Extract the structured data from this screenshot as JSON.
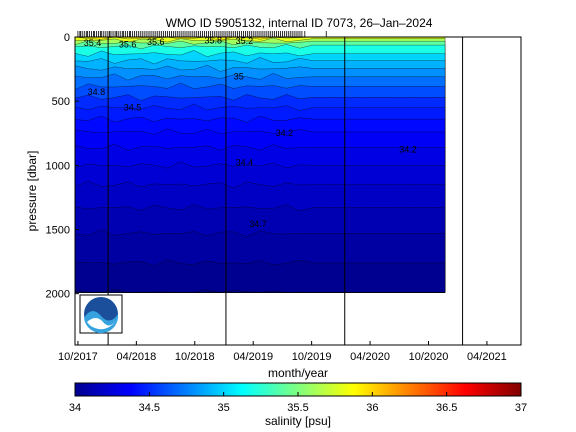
{
  "chart_data": {
    "type": "heatmap",
    "title": "WMO ID 5905132, internal ID 7073, 26–Jan–2024",
    "xlabel": "month/year",
    "ylabel": "pressure [dbar]",
    "colorbar_label": "salinity [psu]",
    "x_ticks": [
      "10/2017",
      "04/2018",
      "10/2018",
      "04/2019",
      "10/2019",
      "04/2020",
      "10/2020",
      "04/2021"
    ],
    "x_tick_months": [
      0,
      6,
      12,
      18,
      24,
      30,
      36,
      42
    ],
    "xlim_months": [
      -0.3,
      45.5
    ],
    "data_end_month": 37.7,
    "y_ticks": [
      0,
      500,
      1000,
      1500,
      2000
    ],
    "ylim": [
      0,
      2400
    ],
    "y_reversed": true,
    "max_pressure": 1990,
    "colorbar_ticks": [
      "34",
      "34.5",
      "35",
      "35.5",
      "36",
      "36.5",
      "37"
    ],
    "clim": [
      34,
      37
    ],
    "colormap": "jet",
    "vertical_lines_months": [
      3.1,
      15.2,
      27.4,
      39.5
    ],
    "contour_labels": [
      {
        "text": "35.4",
        "month": 0.6,
        "pressure": 40
      },
      {
        "text": "35.6",
        "month": 7.1,
        "pressure": 30
      },
      {
        "text": "35.6",
        "month": 4.2,
        "pressure": 50
      },
      {
        "text": "35.8",
        "month": 13.0,
        "pressure": 20
      },
      {
        "text": "35.2",
        "month": 16.2,
        "pressure": 25
      },
      {
        "text": "35",
        "month": 16.0,
        "pressure": 300
      },
      {
        "text": "34.8",
        "month": 1.0,
        "pressure": 420
      },
      {
        "text": "34.5",
        "month": 4.7,
        "pressure": 540
      },
      {
        "text": "34.2",
        "month": 20.3,
        "pressure": 740
      },
      {
        "text": "34.2",
        "month": 33.0,
        "pressure": 870
      },
      {
        "text": "34.4",
        "month": 16.2,
        "pressure": 970
      },
      {
        "text": "34.7",
        "month": 17.6,
        "pressure": 1450
      }
    ],
    "profile_months": [
      0.0,
      0.2,
      0.3,
      0.5,
      0.7,
      0.9,
      1.0,
      1.2,
      1.4,
      1.6,
      1.7,
      1.9,
      2.1,
      2.3,
      2.4,
      2.6,
      2.8,
      3.0,
      3.2,
      3.3,
      3.5,
      3.7,
      3.9,
      4.0,
      4.2,
      4.4,
      4.6,
      4.7,
      4.9,
      5.1,
      5.3,
      5.4,
      5.6,
      5.8,
      6.0,
      6.2,
      6.4,
      6.6,
      6.8,
      7.0,
      7.2,
      7.4,
      7.6,
      7.8,
      8.0,
      8.2,
      8.4,
      8.6,
      8.8,
      9.0,
      9.2,
      9.4,
      9.6,
      9.8,
      10.0,
      10.2,
      10.4,
      10.6,
      10.8,
      11.0,
      11.2,
      11.4,
      11.6,
      11.8,
      12.0,
      12.2,
      12.4,
      12.6,
      12.8,
      13.0,
      13.2,
      13.4,
      13.6,
      13.8,
      14.0,
      14.2,
      14.4,
      14.6,
      14.8,
      15.0,
      15.2,
      15.4,
      15.6,
      15.8,
      16.0,
      16.2,
      16.4,
      16.6,
      16.8,
      17.0,
      17.2,
      17.4,
      17.6,
      17.8,
      18.0,
      18.2,
      18.4,
      18.6,
      18.8,
      19.0,
      19.2,
      19.4,
      19.6,
      19.8,
      20.0,
      20.2,
      20.4,
      20.6,
      20.8,
      21.0,
      21.2,
      21.4,
      21.6,
      21.8,
      22.0,
      22.2,
      22.4,
      22.6,
      22.8,
      23.0,
      23.3,
      25.5
    ]
  }
}
